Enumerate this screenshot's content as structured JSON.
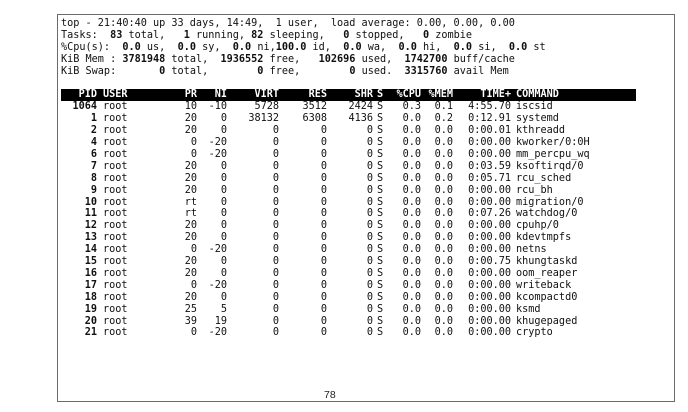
{
  "summary": {
    "l1_a": "top - 21:40:40 up 33 days, 14:49,  1 user,  load average: 0.00, 0.00, 0.00",
    "l2_a": "Tasks: ",
    "l2_total": " 83",
    "l2_b": " total,   ",
    "l2_running": "1",
    "l2_c": " running, ",
    "l2_sleeping": "82",
    "l2_d": " sleeping,   ",
    "l2_stopped": "0",
    "l2_e": " stopped,   ",
    "l2_zombie": "0",
    "l2_f": " zombie",
    "l3_a": "%Cpu(s):  ",
    "l3_us": "0.0",
    "l3_b": " us,  ",
    "l3_sy": "0.0",
    "l3_c": " sy,  ",
    "l3_ni": "0.0",
    "l3_d": " ni,",
    "l3_id": "100.0",
    "l3_e": " id,  ",
    "l3_wa": "0.0",
    "l3_f": " wa,  ",
    "l3_hi": "0.0",
    "l3_g": " hi,  ",
    "l3_si": "0.0",
    "l3_h": " si,  ",
    "l3_st": "0.0",
    "l3_i": " st",
    "l4_a": "KiB Mem : ",
    "l4_total": "3781948",
    "l4_b": " total,  ",
    "l4_free": "1936552",
    "l4_c": " free,   ",
    "l4_used": "102696",
    "l4_d": " used,  ",
    "l4_buff": "1742700",
    "l4_e": " buff/cache",
    "l5_a": "KiB Swap:       ",
    "l5_total": "0",
    "l5_b": " total,        ",
    "l5_free": "0",
    "l5_c": " free,        ",
    "l5_used": "0",
    "l5_d": " used.  ",
    "l5_avail": "3315760",
    "l5_e": " avail Mem"
  },
  "columns": [
    "PID",
    "USER",
    "PR",
    "NI",
    "VIRT",
    "RES",
    "SHR",
    "S",
    "%CPU",
    "%MEM",
    "TIME+",
    "COMMAND"
  ],
  "processes": [
    {
      "pid": "1064",
      "user": "root",
      "pr": "10",
      "ni": "-10",
      "virt": "5728",
      "res": "3512",
      "shr": "2424",
      "s": "S",
      "cpu": "0.3",
      "mem": "0.1",
      "time": "4:55.70",
      "cmd": "iscsid"
    },
    {
      "pid": "1",
      "user": "root",
      "pr": "20",
      "ni": "0",
      "virt": "38132",
      "res": "6308",
      "shr": "4136",
      "s": "S",
      "cpu": "0.0",
      "mem": "0.2",
      "time": "0:12.91",
      "cmd": "systemd"
    },
    {
      "pid": "2",
      "user": "root",
      "pr": "20",
      "ni": "0",
      "virt": "0",
      "res": "0",
      "shr": "0",
      "s": "S",
      "cpu": "0.0",
      "mem": "0.0",
      "time": "0:00.01",
      "cmd": "kthreadd"
    },
    {
      "pid": "4",
      "user": "root",
      "pr": "0",
      "ni": "-20",
      "virt": "0",
      "res": "0",
      "shr": "0",
      "s": "S",
      "cpu": "0.0",
      "mem": "0.0",
      "time": "0:00.00",
      "cmd": "kworker/0:0H"
    },
    {
      "pid": "6",
      "user": "root",
      "pr": "0",
      "ni": "-20",
      "virt": "0",
      "res": "0",
      "shr": "0",
      "s": "S",
      "cpu": "0.0",
      "mem": "0.0",
      "time": "0:00.00",
      "cmd": "mm_percpu_wq"
    },
    {
      "pid": "7",
      "user": "root",
      "pr": "20",
      "ni": "0",
      "virt": "0",
      "res": "0",
      "shr": "0",
      "s": "S",
      "cpu": "0.0",
      "mem": "0.0",
      "time": "0:03.59",
      "cmd": "ksoftirqd/0"
    },
    {
      "pid": "8",
      "user": "root",
      "pr": "20",
      "ni": "0",
      "virt": "0",
      "res": "0",
      "shr": "0",
      "s": "S",
      "cpu": "0.0",
      "mem": "0.0",
      "time": "0:05.71",
      "cmd": "rcu_sched"
    },
    {
      "pid": "9",
      "user": "root",
      "pr": "20",
      "ni": "0",
      "virt": "0",
      "res": "0",
      "shr": "0",
      "s": "S",
      "cpu": "0.0",
      "mem": "0.0",
      "time": "0:00.00",
      "cmd": "rcu_bh"
    },
    {
      "pid": "10",
      "user": "root",
      "pr": "rt",
      "ni": "0",
      "virt": "0",
      "res": "0",
      "shr": "0",
      "s": "S",
      "cpu": "0.0",
      "mem": "0.0",
      "time": "0:00.00",
      "cmd": "migration/0"
    },
    {
      "pid": "11",
      "user": "root",
      "pr": "rt",
      "ni": "0",
      "virt": "0",
      "res": "0",
      "shr": "0",
      "s": "S",
      "cpu": "0.0",
      "mem": "0.0",
      "time": "0:07.26",
      "cmd": "watchdog/0"
    },
    {
      "pid": "12",
      "user": "root",
      "pr": "20",
      "ni": "0",
      "virt": "0",
      "res": "0",
      "shr": "0",
      "s": "S",
      "cpu": "0.0",
      "mem": "0.0",
      "time": "0:00.00",
      "cmd": "cpuhp/0"
    },
    {
      "pid": "13",
      "user": "root",
      "pr": "20",
      "ni": "0",
      "virt": "0",
      "res": "0",
      "shr": "0",
      "s": "S",
      "cpu": "0.0",
      "mem": "0.0",
      "time": "0:00.00",
      "cmd": "kdevtmpfs"
    },
    {
      "pid": "14",
      "user": "root",
      "pr": "0",
      "ni": "-20",
      "virt": "0",
      "res": "0",
      "shr": "0",
      "s": "S",
      "cpu": "0.0",
      "mem": "0.0",
      "time": "0:00.00",
      "cmd": "netns"
    },
    {
      "pid": "15",
      "user": "root",
      "pr": "20",
      "ni": "0",
      "virt": "0",
      "res": "0",
      "shr": "0",
      "s": "S",
      "cpu": "0.0",
      "mem": "0.0",
      "time": "0:00.75",
      "cmd": "khungtaskd"
    },
    {
      "pid": "16",
      "user": "root",
      "pr": "20",
      "ni": "0",
      "virt": "0",
      "res": "0",
      "shr": "0",
      "s": "S",
      "cpu": "0.0",
      "mem": "0.0",
      "time": "0:00.00",
      "cmd": "oom_reaper"
    },
    {
      "pid": "17",
      "user": "root",
      "pr": "0",
      "ni": "-20",
      "virt": "0",
      "res": "0",
      "shr": "0",
      "s": "S",
      "cpu": "0.0",
      "mem": "0.0",
      "time": "0:00.00",
      "cmd": "writeback"
    },
    {
      "pid": "18",
      "user": "root",
      "pr": "20",
      "ni": "0",
      "virt": "0",
      "res": "0",
      "shr": "0",
      "s": "S",
      "cpu": "0.0",
      "mem": "0.0",
      "time": "0:00.00",
      "cmd": "kcompactd0"
    },
    {
      "pid": "19",
      "user": "root",
      "pr": "25",
      "ni": "5",
      "virt": "0",
      "res": "0",
      "shr": "0",
      "s": "S",
      "cpu": "0.0",
      "mem": "0.0",
      "time": "0:00.00",
      "cmd": "ksmd"
    },
    {
      "pid": "20",
      "user": "root",
      "pr": "39",
      "ni": "19",
      "virt": "0",
      "res": "0",
      "shr": "0",
      "s": "S",
      "cpu": "0.0",
      "mem": "0.0",
      "time": "0:00.00",
      "cmd": "khugepaged"
    },
    {
      "pid": "21",
      "user": "root",
      "pr": "0",
      "ni": "-20",
      "virt": "0",
      "res": "0",
      "shr": "0",
      "s": "S",
      "cpu": "0.0",
      "mem": "0.0",
      "time": "0:00.00",
      "cmd": "crypto"
    }
  ],
  "page_number": "78"
}
